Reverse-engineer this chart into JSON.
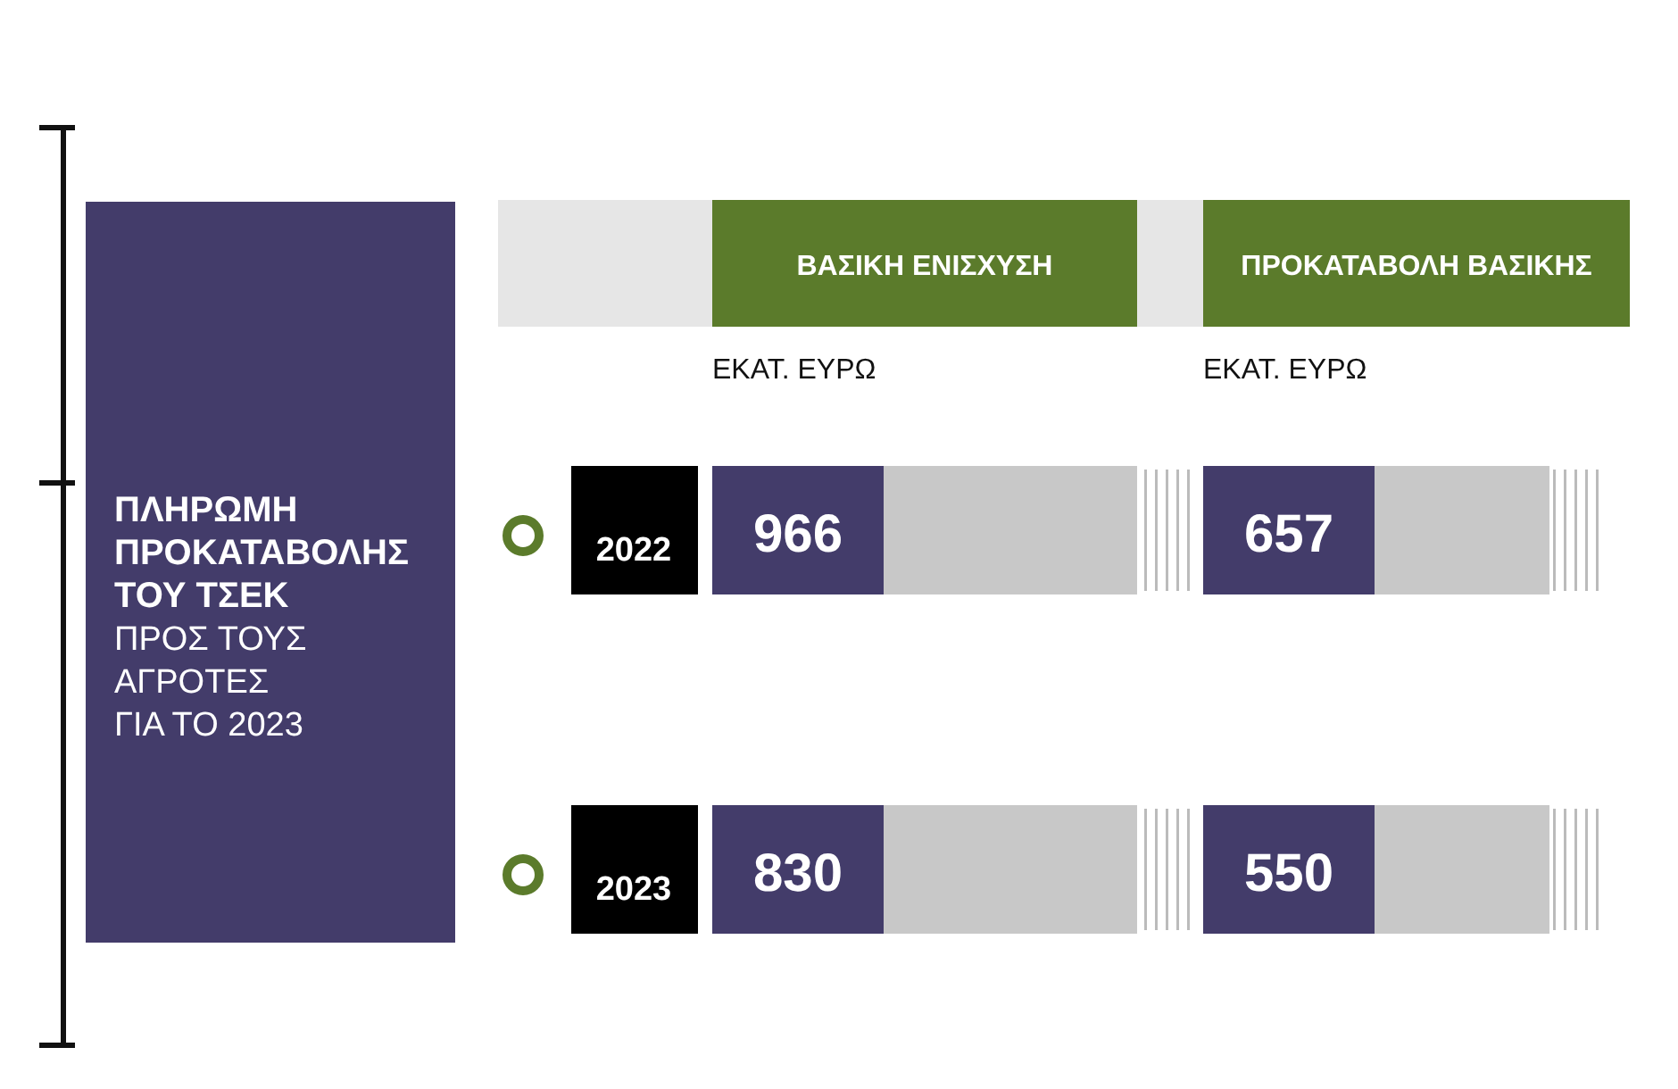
{
  "chart_data": {
    "type": "other",
    "title": "ΠΛΗΡΩΜΗ\nΠΡΟΚΑΤΑΒΟΛΗΣ\nΤΟΥ ΤΣΕΚ",
    "subtitle": "ΠΡΟΣ ΤΟΥΣ\nΑΓΡΟΤΕΣ\nΓΙΑ ΤΟ 2023",
    "categories": [
      "ΒΑΣΙΚΗ ΕΝΙΣΧΥΣΗ",
      "ΠΡΟΚΑΤΑΒΟΛΗ ΒΑΣΙΚΗΣ"
    ],
    "series": [
      {
        "name": "2022",
        "color": "#433c6a",
        "values": [
          966,
          657
        ]
      },
      {
        "name": "2023",
        "color": "#433c6a",
        "values": [
          830,
          550
        ]
      }
    ],
    "annotations": [
      "ΕΚΑΤ. ΕΥΡΩ",
      "ΕΚΑΤ. ΕΥΡΩ"
    ],
    "data_labels": true
  }
}
